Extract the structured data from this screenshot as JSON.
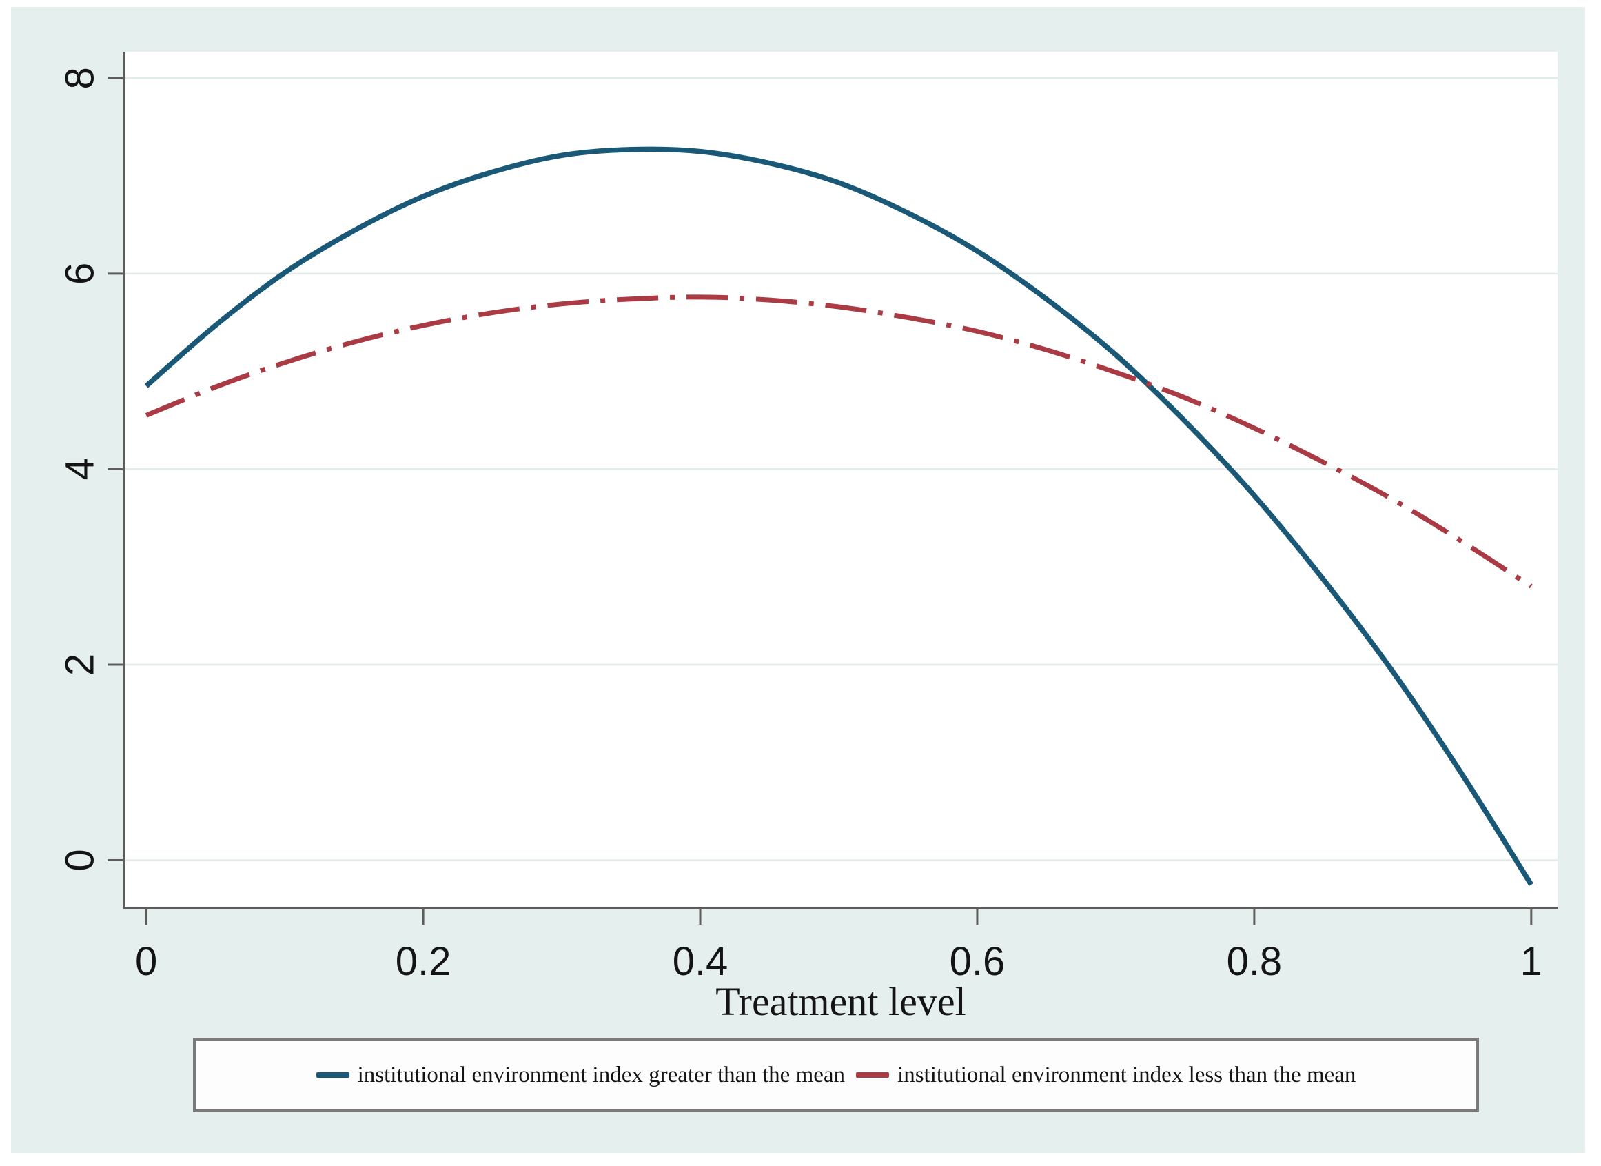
{
  "figure": {
    "page_bg": "#ffffff",
    "panel_bg": "#e5efee",
    "plot_bg": "#ffffff",
    "grid_color": "#e3eaea",
    "axis_color": "#5c5c5c",
    "text_color": "#141414",
    "legend_border_color": "#7a7a7a",
    "legend_bg": "#fdfdfd"
  },
  "chart_data": {
    "type": "line",
    "title": "",
    "xlabel": "Treatment level",
    "ylabel": "",
    "xlim": [
      -0.016,
      1.019
    ],
    "ylim": [
      -0.49,
      8.27
    ],
    "grid": "horizontal gridlines at y ticks",
    "legend_position": "bottom",
    "x_ticks": {
      "labels": [
        "0",
        "0.2",
        "0.4",
        "0.6",
        "0.8",
        "1"
      ],
      "values": [
        0,
        0.2,
        0.4,
        0.6,
        0.8,
        1
      ]
    },
    "y_ticks": {
      "labels": [
        "0",
        "2",
        "4",
        "6",
        "8"
      ],
      "values": [
        0,
        2,
        4,
        6,
        8
      ]
    },
    "x": [
      0,
      0.05,
      0.1,
      0.15,
      0.2,
      0.25,
      0.3,
      0.35,
      0.4,
      0.45,
      0.5,
      0.55,
      0.6,
      0.65,
      0.7,
      0.75,
      0.8,
      0.85,
      0.9,
      0.95,
      1.0
    ],
    "series": [
      {
        "name": "institutional environment index greater than the mean",
        "color": "#1a5878",
        "line_style": "solid",
        "line_width": 7.5,
        "values": [
          4.85,
          5.47,
          6.01,
          6.44,
          6.79,
          7.04,
          7.21,
          7.27,
          7.25,
          7.13,
          6.93,
          6.62,
          6.23,
          5.74,
          5.17,
          4.49,
          3.73,
          2.87,
          1.93,
          0.88,
          -0.25
        ]
      },
      {
        "name": "institutional environment index less than the mean",
        "color": "#aa3a43",
        "line_style": "dash-dot",
        "line_width": 7,
        "values": [
          4.55,
          4.84,
          5.09,
          5.3,
          5.47,
          5.6,
          5.69,
          5.74,
          5.76,
          5.73,
          5.66,
          5.55,
          5.41,
          5.22,
          4.99,
          4.73,
          4.42,
          4.07,
          3.69,
          3.26,
          2.8
        ]
      }
    ]
  }
}
